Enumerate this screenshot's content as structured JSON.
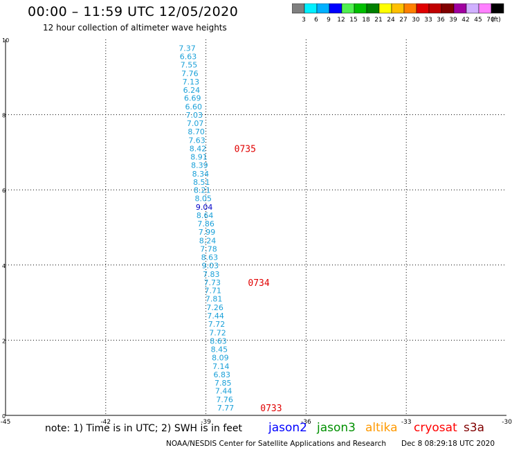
{
  "header": {
    "title": "00:00 – 11:59 UTC 12/05/2020",
    "subtitle": "12 hour collection of altimeter wave heights"
  },
  "colorbar": {
    "colors": [
      "#7f7f7f",
      "#00f0ff",
      "#00b0ff",
      "#0000ff",
      "#50f050",
      "#00c000",
      "#008000",
      "#ffff00",
      "#ffc000",
      "#ff8000",
      "#e00000",
      "#c00000",
      "#800000",
      "#a000a0",
      "#d0b0ff",
      "#ff80ff",
      "#000000"
    ],
    "labels": [
      "3",
      "6",
      "9",
      "12",
      "15",
      "18",
      "21",
      "24",
      "27",
      "30",
      "33",
      "36",
      "39",
      "42",
      "45",
      "70",
      "(ft)"
    ]
  },
  "chart_data": {
    "type": "scatter",
    "xlim": [
      -45,
      -30
    ],
    "ylim": [
      0,
      10
    ],
    "xticks": [
      -45,
      -42,
      -39,
      -36,
      -33,
      -30
    ],
    "xtick_labels": [
      "-45",
      "-42",
      "-39",
      "-36",
      "-33",
      "-30"
    ],
    "yticks": [
      0,
      2,
      4,
      6,
      8,
      10
    ],
    "ytick_labels": [
      "0",
      "2",
      "4",
      "6",
      "8",
      "10"
    ],
    "grid": true,
    "series": [
      {
        "name": "jason3",
        "color": "#1aa0d8",
        "points": [
          {
            "x": -39.56,
            "y": 9.77,
            "label": "7.37"
          },
          {
            "x": -39.53,
            "y": 9.55,
            "label": "6.63"
          },
          {
            "x": -39.51,
            "y": 9.33,
            "label": "7.55"
          },
          {
            "x": -39.48,
            "y": 9.1,
            "label": "7.76"
          },
          {
            "x": -39.45,
            "y": 8.88,
            "label": "7.13"
          },
          {
            "x": -39.43,
            "y": 8.66,
            "label": "6.24"
          },
          {
            "x": -39.4,
            "y": 8.44,
            "label": "6.69"
          },
          {
            "x": -39.37,
            "y": 8.21,
            "label": "6.60"
          },
          {
            "x": -39.35,
            "y": 7.99,
            "label": "7.03"
          },
          {
            "x": -39.32,
            "y": 7.77,
            "label": "7.07"
          },
          {
            "x": -39.29,
            "y": 7.55,
            "label": "8.70"
          },
          {
            "x": -39.27,
            "y": 7.32,
            "label": "7.63"
          },
          {
            "x": -39.24,
            "y": 7.1,
            "label": "8.42"
          },
          {
            "x": -39.21,
            "y": 6.88,
            "label": "8.91"
          },
          {
            "x": -39.19,
            "y": 6.66,
            "label": "8.39"
          },
          {
            "x": -39.16,
            "y": 6.43,
            "label": "8.34"
          },
          {
            "x": -39.13,
            "y": 6.21,
            "label": "8.51"
          },
          {
            "x": -39.11,
            "y": 5.99,
            "label": "8.21"
          },
          {
            "x": -39.08,
            "y": 5.77,
            "label": "8.05"
          },
          {
            "x": -39.05,
            "y": 5.54,
            "label": "9.04",
            "color": "#0000c8"
          },
          {
            "x": -39.03,
            "y": 5.32,
            "label": "8.64"
          },
          {
            "x": -39.0,
            "y": 5.1,
            "label": "7.86"
          },
          {
            "x": -38.97,
            "y": 4.88,
            "label": "7.99"
          },
          {
            "x": -38.95,
            "y": 4.65,
            "label": "8.24"
          },
          {
            "x": -38.92,
            "y": 4.43,
            "label": "7.78"
          },
          {
            "x": -38.89,
            "y": 4.21,
            "label": "8.63"
          },
          {
            "x": -38.87,
            "y": 3.99,
            "label": "9.03"
          },
          {
            "x": -38.84,
            "y": 3.76,
            "label": "7.83"
          },
          {
            "x": -38.81,
            "y": 3.54,
            "label": "7.73"
          },
          {
            "x": -38.79,
            "y": 3.32,
            "label": "7.71"
          },
          {
            "x": -38.76,
            "y": 3.1,
            "label": "7.81"
          },
          {
            "x": -38.73,
            "y": 2.87,
            "label": "7.26"
          },
          {
            "x": -38.71,
            "y": 2.65,
            "label": "7.44"
          },
          {
            "x": -38.68,
            "y": 2.43,
            "label": "7.72"
          },
          {
            "x": -38.65,
            "y": 2.2,
            "label": "7.72"
          },
          {
            "x": -38.63,
            "y": 1.98,
            "label": "8.63"
          },
          {
            "x": -38.6,
            "y": 1.76,
            "label": "8.45"
          },
          {
            "x": -38.57,
            "y": 1.54,
            "label": "8.09"
          },
          {
            "x": -38.55,
            "y": 1.31,
            "label": "7.14"
          },
          {
            "x": -38.52,
            "y": 1.09,
            "label": "6.83"
          },
          {
            "x": -38.49,
            "y": 0.87,
            "label": "7.85"
          },
          {
            "x": -38.47,
            "y": 0.65,
            "label": "7.44"
          },
          {
            "x": -38.44,
            "y": 0.42,
            "label": "7.76"
          },
          {
            "x": -38.41,
            "y": 0.2,
            "label": "7.77"
          }
        ]
      }
    ],
    "time_annotations": [
      {
        "x": -38.15,
        "y": 7.1,
        "label": "0735",
        "color": "#e00000"
      },
      {
        "x": -37.74,
        "y": 3.54,
        "label": "0734",
        "color": "#e00000"
      },
      {
        "x": -37.37,
        "y": 0.2,
        "label": "0733",
        "color": "#e00000"
      }
    ]
  },
  "note": "note:  1) Time is in UTC; 2) SWH is in feet",
  "legend": [
    {
      "name": "jason2",
      "color": "#0000ff"
    },
    {
      "name": "jason3",
      "color": "#009000"
    },
    {
      "name": "altika",
      "color": "#ff9900"
    },
    {
      "name": "cryosat",
      "color": "#ff0000"
    },
    {
      "name": "s3a",
      "color": "#800000"
    }
  ],
  "footer": {
    "credit": "NOAA/NESDIS Center for Satellite Applications and Research",
    "timestamp": "Dec  8 08:29:18 UTC 2020"
  }
}
